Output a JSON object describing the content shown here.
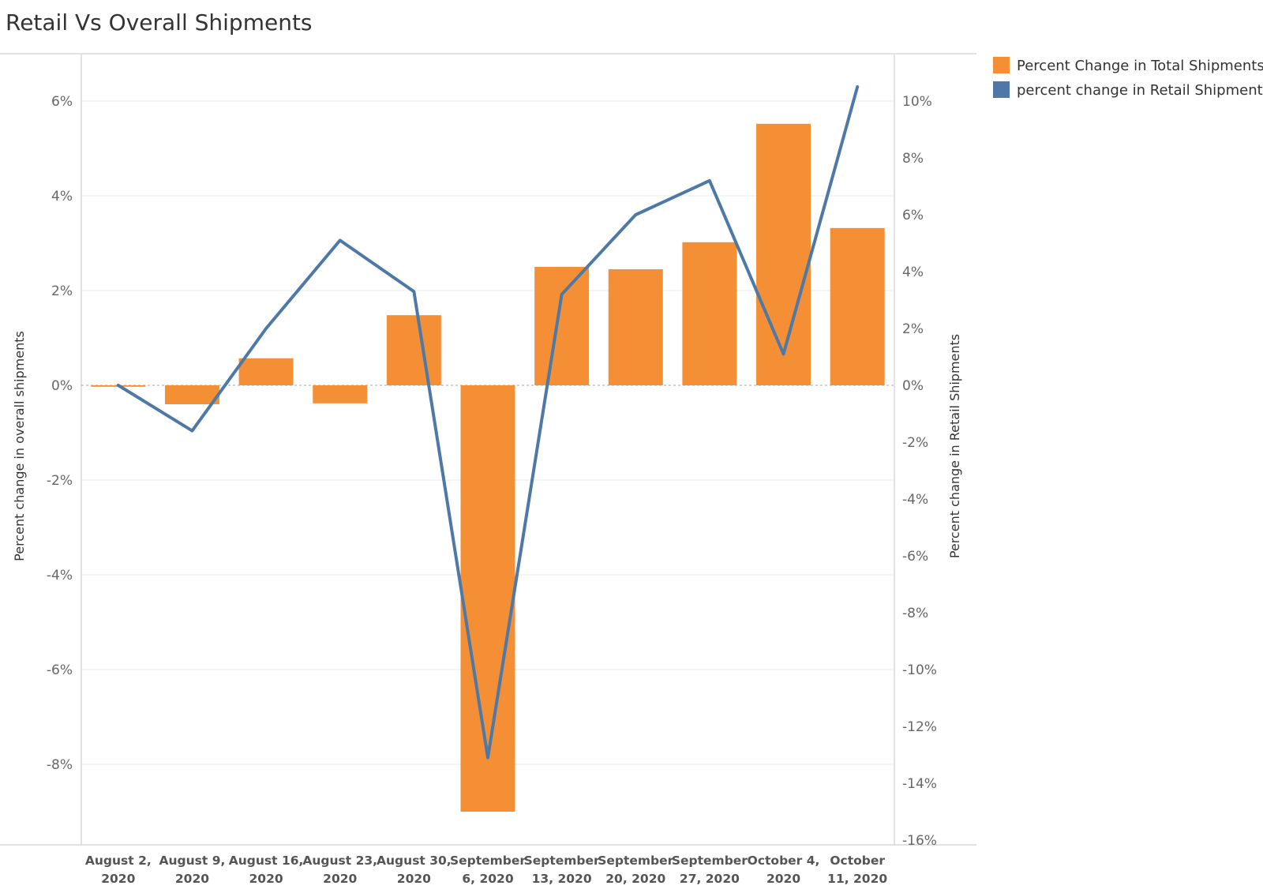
{
  "chart_data": {
    "type": "bar",
    "title": "Retail Vs Overall Shipments",
    "categories": [
      [
        "August 2,",
        "2020"
      ],
      [
        "August 9,",
        "2020"
      ],
      [
        "August 16,",
        "2020"
      ],
      [
        "August 23,",
        "2020"
      ],
      [
        "August 30,",
        "2020"
      ],
      [
        "September",
        "6, 2020"
      ],
      [
        "September",
        "13, 2020"
      ],
      [
        "September",
        "20, 2020"
      ],
      [
        "September",
        "27, 2020"
      ],
      [
        "October 4,",
        "2020"
      ],
      [
        "October",
        "11, 2020"
      ]
    ],
    "series": [
      {
        "name": "Percent Change in Total Shipments",
        "type": "bar",
        "axis": "left",
        "color": "#F58F36",
        "values": [
          -0.03,
          -0.4,
          0.57,
          -0.38,
          1.48,
          -9.0,
          2.5,
          2.45,
          3.02,
          5.52,
          3.32
        ]
      },
      {
        "name": "percent change in Retail Shipments",
        "type": "line",
        "axis": "right",
        "color": "#4E79A7",
        "values": [
          0.0,
          -1.6,
          2.0,
          5.1,
          3.3,
          -13.1,
          3.2,
          6.0,
          7.2,
          1.1,
          10.5
        ]
      }
    ],
    "y_left": {
      "label": "Percent change in overall shipments",
      "ticks": [
        6,
        4,
        2,
        0,
        -2,
        -4,
        -6,
        -8
      ],
      "tick_labels": [
        "6%",
        "4%",
        "2%",
        "0%",
        "-2%",
        "-4%",
        "-6%",
        "-8%"
      ],
      "ylim": [
        -9.5,
        7.0
      ]
    },
    "y_right": {
      "label": "Percent change in Retail Shipments",
      "ticks": [
        10,
        8,
        6,
        4,
        2,
        0,
        -2,
        -4,
        -6,
        -8,
        -10,
        -12,
        -14,
        -16
      ],
      "tick_labels": [
        "10%",
        "8%",
        "6%",
        "4%",
        "2%",
        "0%",
        "-2%",
        "-4%",
        "-6%",
        "-8%",
        "-10%",
        "-12%",
        "-14%",
        "-16%"
      ],
      "ylim": [
        -16.0,
        11.6
      ]
    },
    "grid": true,
    "legend_position": "right"
  }
}
